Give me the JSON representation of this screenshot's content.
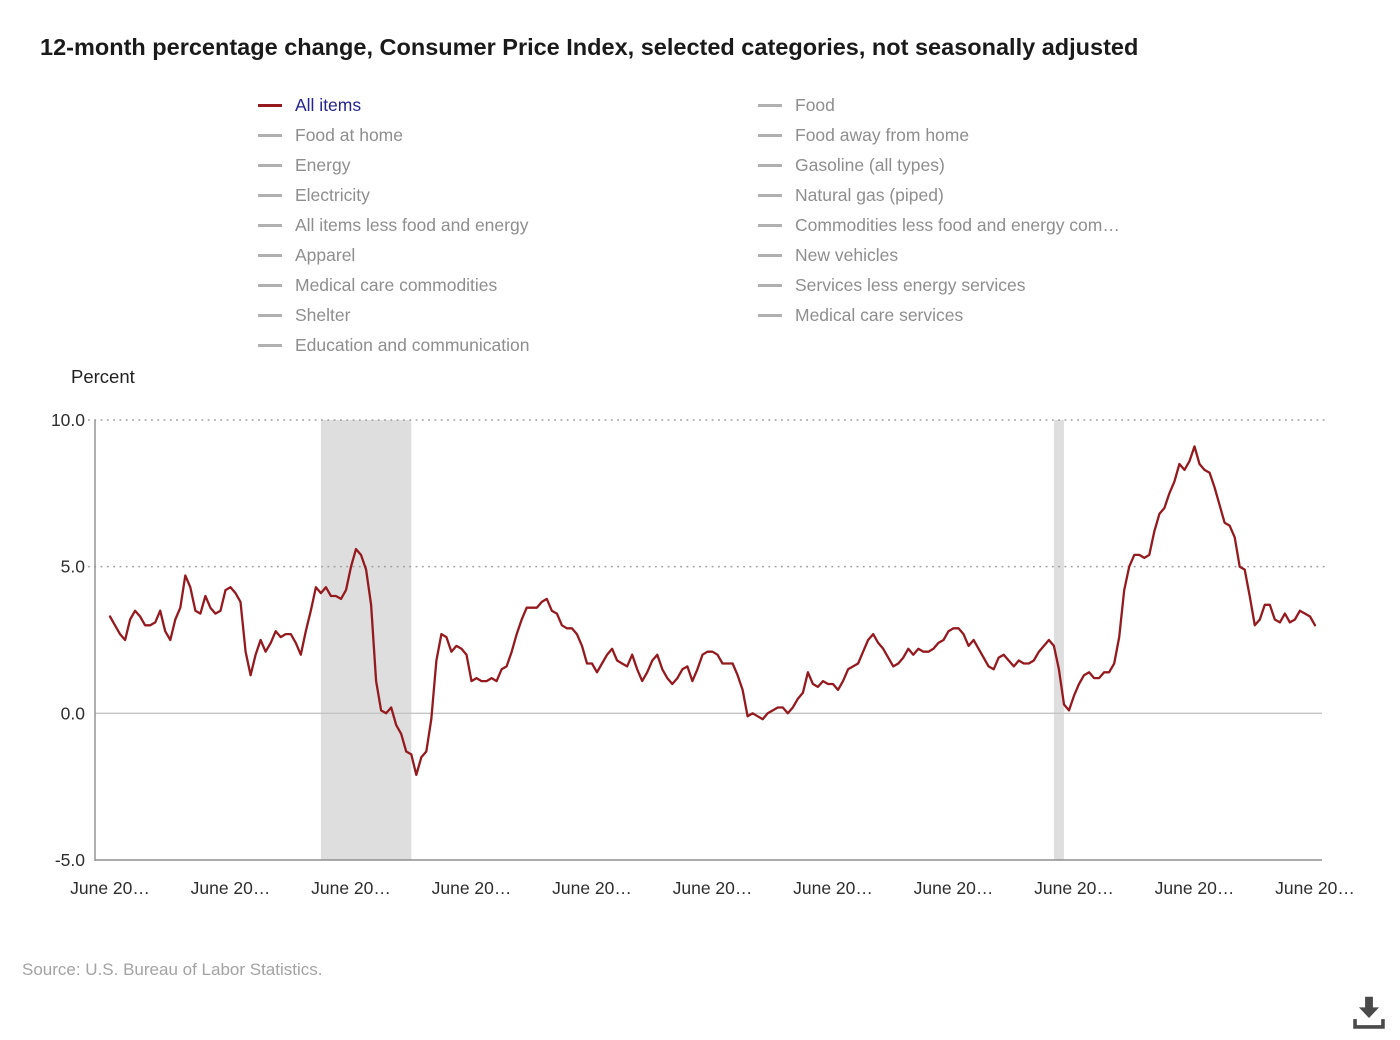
{
  "title": "12-month percentage change, Consumer Price Index, selected categories, not seasonally adjusted",
  "y_axis_title": "Percent",
  "source": "Source: U.S. Bureau of Labor Statistics.",
  "colors": {
    "active_line": "#941a1f",
    "active_label": "#24248c",
    "inactive_label": "#8e8e8e",
    "inactive_swatch": "#b0b0b0",
    "recession_band": "#dedede",
    "grid_dotted": "#9e9e9e",
    "zero_line": "#c4c4c4",
    "axis_line": "#8f8f8f",
    "tick_text": "#2e2e2e"
  },
  "legend": {
    "column1": [
      {
        "label": "All items",
        "active": true
      },
      {
        "label": "Food at home",
        "active": false
      },
      {
        "label": "Energy",
        "active": false
      },
      {
        "label": "Electricity",
        "active": false
      },
      {
        "label": "All items less food and energy",
        "active": false
      },
      {
        "label": "Apparel",
        "active": false
      },
      {
        "label": "Medical care commodities",
        "active": false
      },
      {
        "label": "Shelter",
        "active": false
      },
      {
        "label": "Education and communication",
        "active": false
      }
    ],
    "column2": [
      {
        "label": "Food",
        "active": false
      },
      {
        "label": "Food away from home",
        "active": false
      },
      {
        "label": "Gasoline (all types)",
        "active": false
      },
      {
        "label": "Natural gas (piped)",
        "active": false
      },
      {
        "label": "Commodities less food and energy com…",
        "active": false
      },
      {
        "label": "New vehicles",
        "active": false
      },
      {
        "label": "Services less energy services",
        "active": false
      },
      {
        "label": "Medical care services",
        "active": false
      }
    ]
  },
  "chart_data": {
    "type": "line",
    "title": "12-month percentage change, Consumer Price Index, selected categories, not seasonally adjusted",
    "ylabel": "Percent",
    "ylim": [
      -5,
      10
    ],
    "yticks": [
      "10.0",
      "5.0",
      "0.0",
      "-5.0"
    ],
    "grid": "dotted horizontal at 10.0 and 5.0, solid at 0.0",
    "legend_position": "top",
    "x_frequency": "monthly",
    "x_tick_labels": [
      "June 20…",
      "June 20…",
      "June 20…",
      "June 20…",
      "June 20…",
      "June 20…",
      "June 20…",
      "June 20…",
      "June 20…",
      "June 20…",
      "June 20…"
    ],
    "shaded_regions": [
      {
        "label": "recession",
        "start_index": 42,
        "end_index": 60
      },
      {
        "label": "recession",
        "start_index": 188,
        "end_index": 190
      }
    ],
    "series": [
      {
        "name": "All items",
        "color": "#941a1f",
        "values": [
          3.3,
          3.0,
          2.7,
          2.5,
          3.2,
          3.5,
          3.3,
          3.0,
          3.0,
          3.1,
          3.5,
          2.8,
          2.5,
          3.2,
          3.6,
          4.7,
          4.3,
          3.5,
          3.4,
          4.0,
          3.6,
          3.4,
          3.5,
          4.2,
          4.3,
          4.1,
          3.8,
          2.1,
          1.3,
          2.0,
          2.5,
          2.1,
          2.4,
          2.8,
          2.6,
          2.7,
          2.7,
          2.4,
          2.0,
          2.8,
          3.5,
          4.3,
          4.1,
          4.3,
          4.0,
          4.0,
          3.9,
          4.2,
          5.0,
          5.6,
          5.4,
          4.9,
          3.7,
          1.1,
          0.1,
          0.0,
          0.2,
          -0.4,
          -0.7,
          -1.3,
          -1.4,
          -2.1,
          -1.5,
          -1.3,
          -0.2,
          1.8,
          2.7,
          2.6,
          2.1,
          2.3,
          2.2,
          2.0,
          1.1,
          1.2,
          1.1,
          1.1,
          1.2,
          1.1,
          1.5,
          1.6,
          2.1,
          2.7,
          3.2,
          3.6,
          3.6,
          3.6,
          3.8,
          3.9,
          3.5,
          3.4,
          3.0,
          2.9,
          2.9,
          2.7,
          2.3,
          1.7,
          1.7,
          1.4,
          1.7,
          2.0,
          2.2,
          1.8,
          1.7,
          1.6,
          2.0,
          1.5,
          1.1,
          1.4,
          1.8,
          2.0,
          1.5,
          1.2,
          1.0,
          1.2,
          1.5,
          1.6,
          1.1,
          1.5,
          2.0,
          2.1,
          2.1,
          2.0,
          1.7,
          1.7,
          1.7,
          1.3,
          0.8,
          -0.1,
          0.0,
          -0.1,
          -0.2,
          0.0,
          0.1,
          0.2,
          0.2,
          0.0,
          0.2,
          0.5,
          0.7,
          1.4,
          1.0,
          0.9,
          1.1,
          1.0,
          1.0,
          0.8,
          1.1,
          1.5,
          1.6,
          1.7,
          2.1,
          2.5,
          2.7,
          2.4,
          2.2,
          1.9,
          1.6,
          1.7,
          1.9,
          2.2,
          2.0,
          2.2,
          2.1,
          2.1,
          2.2,
          2.4,
          2.5,
          2.8,
          2.9,
          2.9,
          2.7,
          2.3,
          2.5,
          2.2,
          1.9,
          1.6,
          1.5,
          1.9,
          2.0,
          1.8,
          1.6,
          1.8,
          1.7,
          1.7,
          1.8,
          2.1,
          2.3,
          2.5,
          2.3,
          1.5,
          0.3,
          0.1,
          0.6,
          1.0,
          1.3,
          1.4,
          1.2,
          1.2,
          1.4,
          1.4,
          1.7,
          2.6,
          4.2,
          5.0,
          5.4,
          5.4,
          5.3,
          5.4,
          6.2,
          6.8,
          7.0,
          7.5,
          7.9,
          8.5,
          8.3,
          8.6,
          9.1,
          8.5,
          8.3,
          8.2,
          7.7,
          7.1,
          6.5,
          6.4,
          6.0,
          5.0,
          4.9,
          4.0,
          3.0,
          3.2,
          3.7,
          3.7,
          3.2,
          3.1,
          3.4,
          3.1,
          3.2,
          3.5,
          3.4,
          3.3,
          3.0
        ]
      }
    ]
  }
}
